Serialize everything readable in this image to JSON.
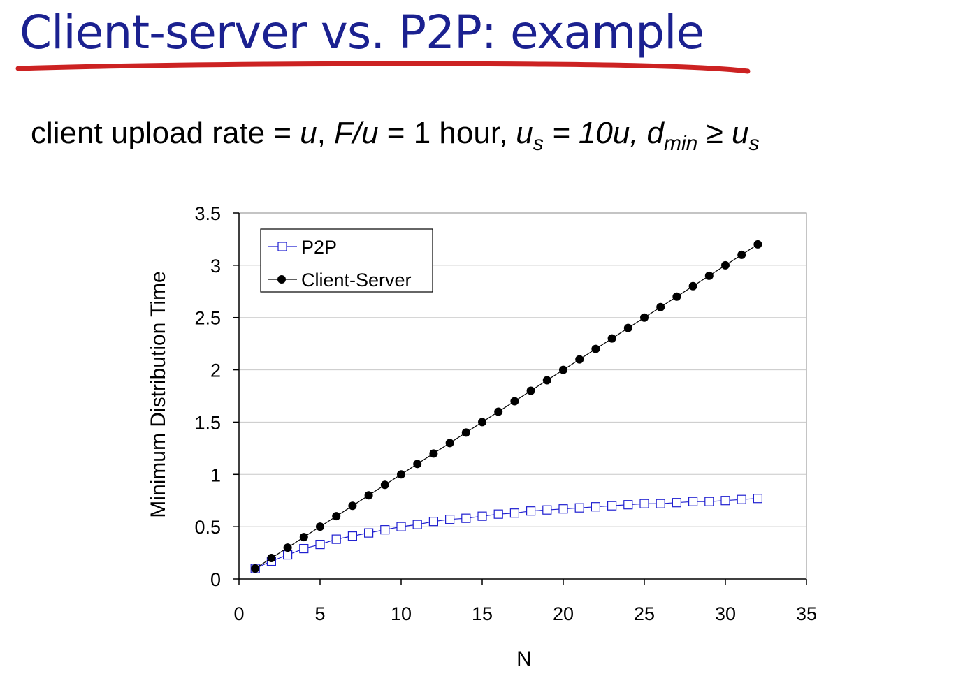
{
  "slide": {
    "title": "Client-server vs. P2P: example",
    "subtitle": {
      "lead": "client upload rate = ",
      "u": "u",
      "comma1": ",",
      "fu": "F/u",
      "eq_hour": " = 1 hour,",
      "us_u": "u",
      "us_sub": "s",
      "us_eq": " = 10u,",
      "dmin_d": "d",
      "dmin_sub": "min",
      "geq": " ≥ ",
      "us2_u": "u",
      "us2_sub": "s"
    }
  },
  "colors": {
    "title": "#1b2190",
    "underline": "#cc2222",
    "p2p": "#1f1fd0",
    "client_server": "#000000",
    "grid": "#c8c8c8"
  },
  "chart_data": {
    "type": "line",
    "xlabel": "N",
    "ylabel": "Minimum Distribution Time",
    "xlim": [
      0,
      35
    ],
    "ylim": [
      0,
      3.5
    ],
    "xticks": [
      0,
      5,
      10,
      15,
      20,
      25,
      30,
      35
    ],
    "yticks": [
      0,
      0.5,
      1,
      1.5,
      2,
      2.5,
      3,
      3.5
    ],
    "xtick_labels": [
      "0",
      "5",
      "10",
      "15",
      "20",
      "25",
      "30",
      "35"
    ],
    "ytick_labels": [
      "0",
      "0.5",
      "1",
      "1.5",
      "2",
      "2.5",
      "3",
      "3.5"
    ],
    "grid": "horizontal",
    "legend_position": "top-left",
    "x": [
      1,
      2,
      3,
      4,
      5,
      6,
      7,
      8,
      9,
      10,
      11,
      12,
      13,
      14,
      15,
      16,
      17,
      18,
      19,
      20,
      21,
      22,
      23,
      24,
      25,
      26,
      27,
      28,
      29,
      30,
      31,
      32
    ],
    "series": [
      {
        "name": "P2P",
        "marker": "open-square",
        "color": "#1f1fd0",
        "values": [
          0.1,
          0.17,
          0.23,
          0.29,
          0.33,
          0.38,
          0.41,
          0.44,
          0.47,
          0.5,
          0.52,
          0.55,
          0.57,
          0.58,
          0.6,
          0.62,
          0.63,
          0.65,
          0.66,
          0.67,
          0.68,
          0.69,
          0.7,
          0.71,
          0.72,
          0.72,
          0.73,
          0.74,
          0.74,
          0.75,
          0.76,
          0.77
        ]
      },
      {
        "name": "Client-Server",
        "marker": "filled-circle",
        "color": "#000000",
        "values": [
          0.1,
          0.2,
          0.3,
          0.4,
          0.5,
          0.6,
          0.7,
          0.8,
          0.9,
          1.0,
          1.1,
          1.2,
          1.3,
          1.4,
          1.5,
          1.6,
          1.7,
          1.8,
          1.9,
          2.0,
          2.1,
          2.2,
          2.3,
          2.4,
          2.5,
          2.6,
          2.7,
          2.8,
          2.9,
          3.0,
          3.1,
          3.2
        ]
      }
    ]
  }
}
